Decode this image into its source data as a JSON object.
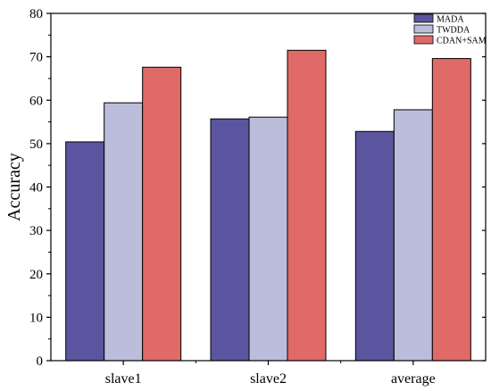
{
  "chart_data": {
    "type": "bar",
    "title": "",
    "xlabel": "",
    "ylabel": "Accuracy",
    "categories": [
      "slave1",
      "slave2",
      "average"
    ],
    "series": [
      {
        "name": "MADA",
        "values": [
          50.4,
          55.7,
          52.8
        ],
        "color": "#5b55a0"
      },
      {
        "name": "TWDDA",
        "values": [
          59.4,
          56.1,
          57.8
        ],
        "color": "#bcbcdb"
      },
      {
        "name": "CDAN+SAM",
        "values": [
          67.6,
          71.5,
          69.6
        ],
        "color": "#df6a68"
      }
    ],
    "ylim": [
      0,
      80
    ],
    "yticks": [
      0,
      10,
      20,
      30,
      40,
      50,
      60,
      70,
      80
    ],
    "grid": false,
    "legend_position": "top-right"
  }
}
